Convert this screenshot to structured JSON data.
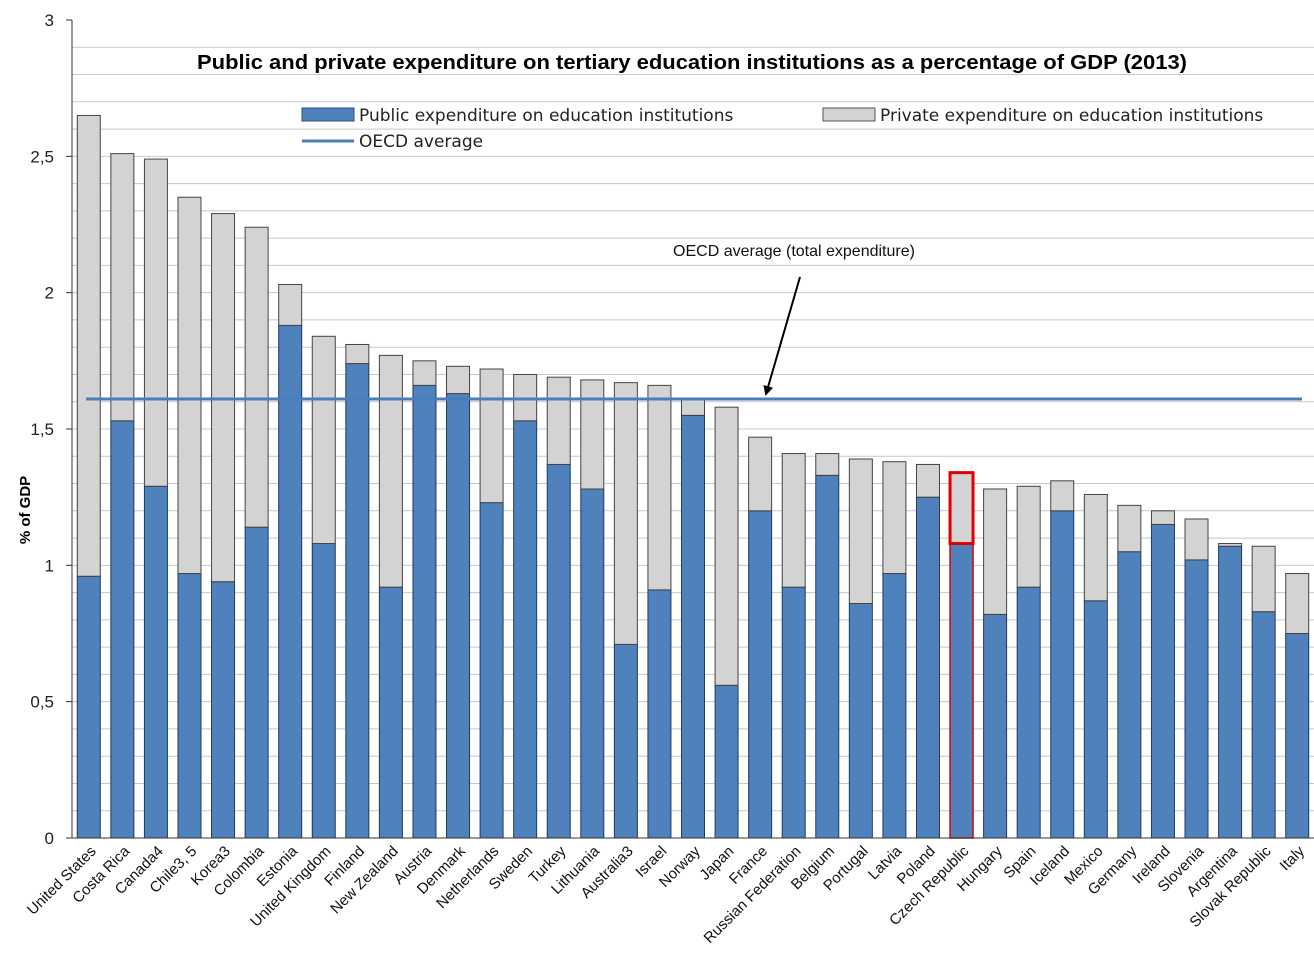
{
  "chart_data": {
    "type": "bar",
    "stacked": true,
    "title": "Public and private expenditure on tertiary education institutions as a percentage of GDP (2013)",
    "ylabel": "% of GDP",
    "xlabel": "",
    "ylim": [
      0,
      3
    ],
    "yticks": [
      "0",
      "0,5",
      "1",
      "1,5",
      "2",
      "2,5",
      "3"
    ],
    "grid": true,
    "legend_position": "top",
    "categories": [
      "United States",
      "Costa Rica",
      "Canada4",
      "Chile3, 5",
      "Korea3",
      "Colombia",
      "Estonia",
      "United Kingdom",
      "Finland",
      "New Zealand",
      "Austria",
      "Denmark",
      "Netherlands",
      "Sweden",
      "Turkey",
      "Lithuania",
      "Australia3",
      "Israel",
      "Norway",
      "Japan",
      "France",
      "Russian Federation",
      "Belgium",
      "Portugal",
      "Latvia",
      "Poland",
      "Czech Republic",
      "Hungary",
      "Spain",
      "Iceland",
      "Mexico",
      "Germany",
      "Ireland",
      "Slovenia",
      "Argentina",
      "Slovak Republic",
      "Italy"
    ],
    "series": [
      {
        "name": "Public expenditure on education institutions",
        "color": "#4f81bd",
        "values": [
          0.96,
          1.53,
          1.29,
          0.97,
          0.94,
          1.14,
          1.88,
          1.08,
          1.74,
          0.92,
          1.66,
          1.63,
          1.23,
          1.53,
          1.37,
          1.28,
          0.71,
          0.91,
          1.55,
          0.56,
          1.2,
          0.92,
          1.33,
          0.86,
          0.97,
          1.25,
          1.08,
          0.82,
          0.92,
          1.2,
          0.87,
          1.05,
          1.15,
          1.02,
          1.07,
          0.83,
          0.75
        ]
      },
      {
        "name": "Private expenditure on education institutions",
        "color": "#d3d3d3",
        "values": [
          1.69,
          0.98,
          1.2,
          1.38,
          1.35,
          1.1,
          0.15,
          0.76,
          0.07,
          0.85,
          0.09,
          0.1,
          0.49,
          0.17,
          0.32,
          0.4,
          0.96,
          0.75,
          0.06,
          1.02,
          0.27,
          0.49,
          0.08,
          0.53,
          0.41,
          0.12,
          0.26,
          0.46,
          0.37,
          0.11,
          0.39,
          0.17,
          0.05,
          0.15,
          0.01,
          0.24,
          0.22
        ]
      }
    ],
    "reference_line": {
      "name": "OECD average",
      "value": 1.61,
      "color": "#4a7ebb"
    },
    "annotation": {
      "text": "OECD average (total expenditure)"
    },
    "highlight_category": "Czech Republic",
    "highlight_color": "#e00000"
  }
}
